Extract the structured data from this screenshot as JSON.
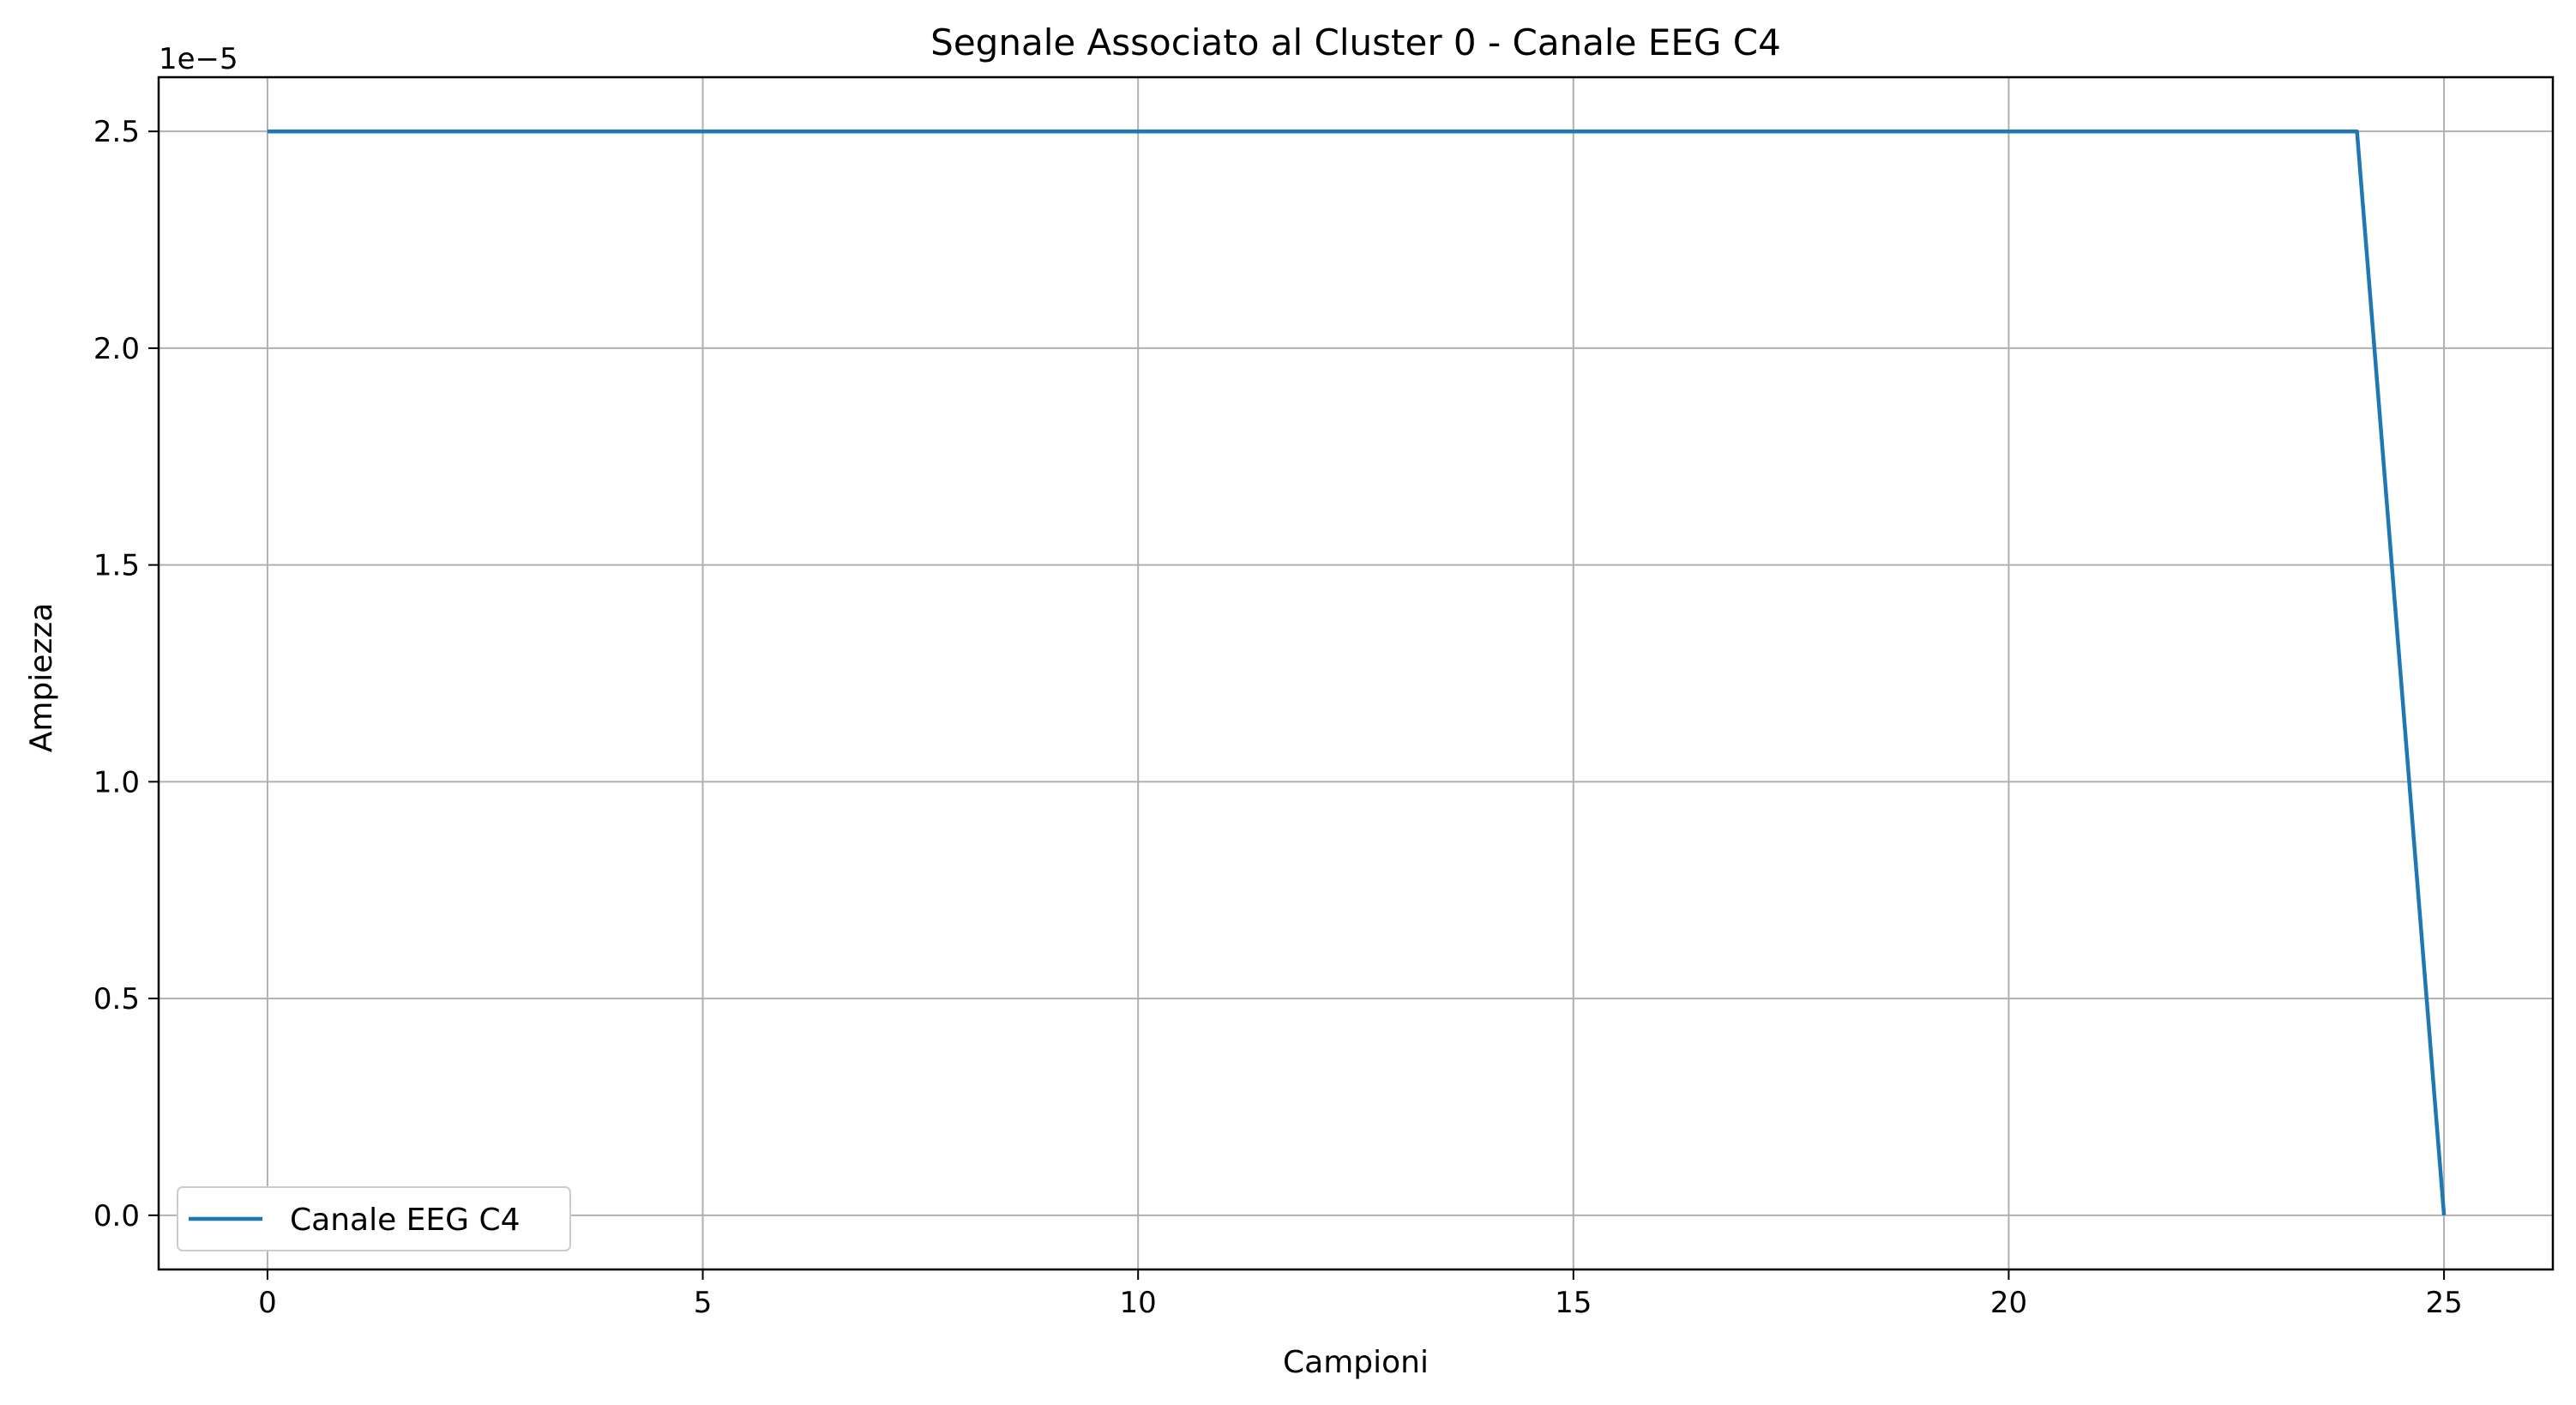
{
  "chart_data": {
    "type": "line",
    "title": "Segnale Associato al Cluster 0 - Canale EEG C4",
    "xlabel": "Campioni",
    "ylabel": "Ampiezza",
    "y_offset_label": "1e−5",
    "xlim": [
      -1.25,
      26.25
    ],
    "ylim": [
      -0.125,
      2.625
    ],
    "y_scale_factor": 1e-05,
    "x_ticks": [
      0,
      5,
      10,
      15,
      20,
      25
    ],
    "x_tick_labels": [
      "0",
      "5",
      "10",
      "15",
      "20",
      "25"
    ],
    "y_ticks": [
      0.0,
      0.5,
      1.0,
      1.5,
      2.0,
      2.5
    ],
    "y_tick_labels": [
      "0.0",
      "0.5",
      "1.0",
      "1.5",
      "2.0",
      "2.5"
    ],
    "grid": true,
    "legend_position": "lower-left",
    "series": [
      {
        "name": "Canale EEG C4",
        "color": "#1f77b4",
        "x": [
          0,
          1,
          2,
          3,
          4,
          5,
          6,
          7,
          8,
          9,
          10,
          11,
          12,
          13,
          14,
          15,
          16,
          17,
          18,
          19,
          20,
          21,
          22,
          23,
          24,
          25
        ],
        "y": [
          2.5,
          2.5,
          2.5,
          2.5,
          2.5,
          2.5,
          2.5,
          2.5,
          2.5,
          2.5,
          2.5,
          2.5,
          2.5,
          2.5,
          2.5,
          2.5,
          2.5,
          2.5,
          2.5,
          2.5,
          2.5,
          2.5,
          2.5,
          2.5,
          2.5,
          0.0
        ]
      }
    ]
  }
}
